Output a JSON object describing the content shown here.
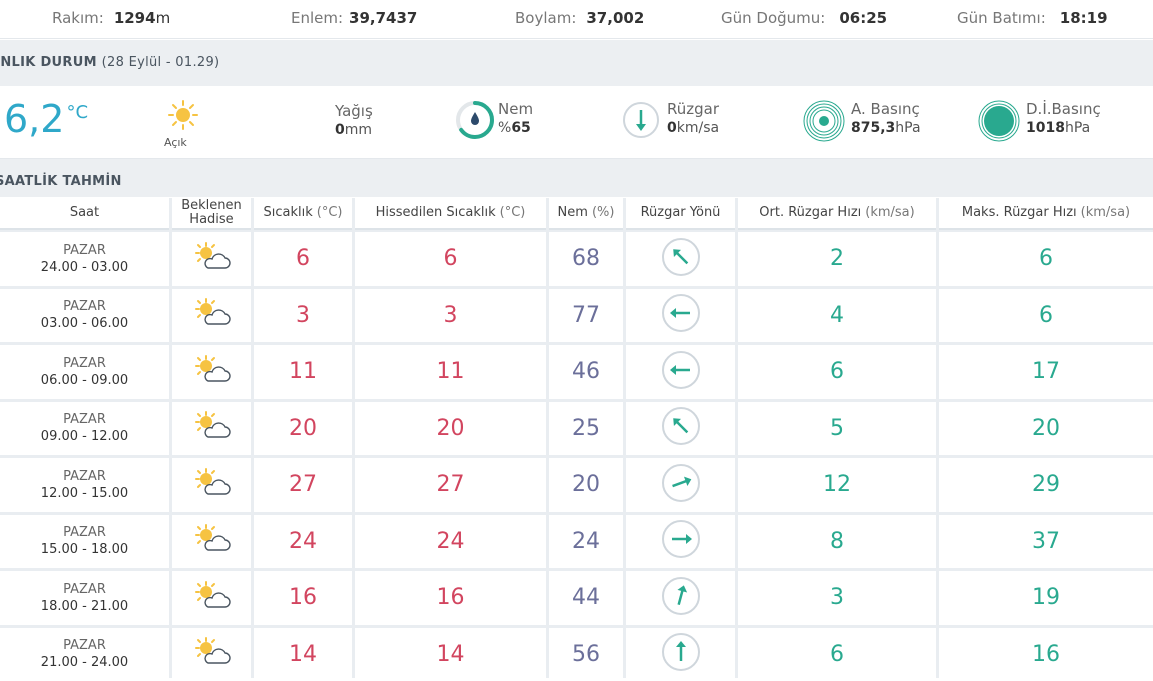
{
  "top": {
    "rakim_label": "Rakım:",
    "rakim_value": "1294",
    "rakim_unit": "m",
    "enlem_label": "Enlem:",
    "enlem_value": "39,7437",
    "boylam_label": "Boylam:",
    "boylam_value": "37,002",
    "gundogumu_label": "Gün Doğumu:",
    "gundogumu_value": "06:25",
    "gunbatimi_label": "Gün Batımı:",
    "gunbatimi_value": "18:19"
  },
  "current_section": {
    "title": "ANLIK DURUM",
    "subtitle": "(28 Eylül - 01.29)"
  },
  "current": {
    "temperature": "6,2",
    "temperature_unit": "°C",
    "condition_icon": "sun-icon",
    "condition_label": "Açık",
    "precip_label": "Yağış",
    "precip_value": "0",
    "precip_unit": "mm",
    "humidity_label": "Nem",
    "humidity_prefix": "%",
    "humidity_value": "65",
    "humidity_ratio": 0.65,
    "wind_label": "Rüzgar",
    "wind_value": "0",
    "wind_unit": "km/sa",
    "pressure_label": "A. Basınç",
    "pressure_value": "875,3",
    "pressure_unit": "hPa",
    "sea_pressure_label": "D.İ.Basınç",
    "sea_pressure_value": "1018",
    "sea_pressure_unit": "hPa",
    "colors": {
      "accent": "#2fa8c9",
      "teal": "#29a98f",
      "red": "#d2455f",
      "purple": "#6b6f9a"
    }
  },
  "hourly_section": {
    "title": "SAATLİK TAHMİN"
  },
  "hourly": {
    "headers": {
      "saat": "Saat",
      "hadise_line1": "Beklenen",
      "hadise_line2": "Hadise",
      "sicaklik": "Sıcaklık",
      "sicaklik_unit": "(°C)",
      "hissedilen": "Hissedilen Sıcaklık",
      "hissedilen_unit": "(°C)",
      "nem": "Nem",
      "nem_unit": "(%)",
      "ruzgar_yonu": "Rüzgar Yönü",
      "ort_ruzgar": "Ort. Rüzgar Hızı",
      "ort_ruzgar_unit": "(km/sa)",
      "maks_ruzgar": "Maks. Rüzgar Hızı",
      "maks_ruzgar_unit": "(km/sa)"
    },
    "rows": [
      {
        "day": "PAZAR",
        "range": "24.00 - 03.00",
        "icon": "partly-cloudy-icon",
        "temp": "6",
        "feels": "6",
        "humidity": "68",
        "wind_dir_deg": 315,
        "wind_avg": "2",
        "wind_max": "6"
      },
      {
        "day": "PAZAR",
        "range": "03.00 - 06.00",
        "icon": "partly-cloudy-icon",
        "temp": "3",
        "feels": "3",
        "humidity": "77",
        "wind_dir_deg": 270,
        "wind_avg": "4",
        "wind_max": "6"
      },
      {
        "day": "PAZAR",
        "range": "06.00 - 09.00",
        "icon": "partly-cloudy-icon",
        "temp": "11",
        "feels": "11",
        "humidity": "46",
        "wind_dir_deg": 270,
        "wind_avg": "6",
        "wind_max": "17"
      },
      {
        "day": "PAZAR",
        "range": "09.00 - 12.00",
        "icon": "partly-cloudy-icon",
        "temp": "20",
        "feels": "20",
        "humidity": "25",
        "wind_dir_deg": 315,
        "wind_avg": "5",
        "wind_max": "20"
      },
      {
        "day": "PAZAR",
        "range": "12.00 - 15.00",
        "icon": "partly-cloudy-icon",
        "temp": "27",
        "feels": "27",
        "humidity": "20",
        "wind_dir_deg": 70,
        "wind_avg": "12",
        "wind_max": "29"
      },
      {
        "day": "PAZAR",
        "range": "15.00 - 18.00",
        "icon": "partly-cloudy-icon",
        "temp": "24",
        "feels": "24",
        "humidity": "24",
        "wind_dir_deg": 90,
        "wind_avg": "8",
        "wind_max": "37"
      },
      {
        "day": "PAZAR",
        "range": "18.00 - 21.00",
        "icon": "partly-cloudy-icon",
        "temp": "16",
        "feels": "16",
        "humidity": "44",
        "wind_dir_deg": 15,
        "wind_avg": "3",
        "wind_max": "19"
      },
      {
        "day": "PAZAR",
        "range": "21.00 - 24.00",
        "icon": "partly-cloudy-icon",
        "temp": "14",
        "feels": "14",
        "humidity": "56",
        "wind_dir_deg": 0,
        "wind_avg": "6",
        "wind_max": "16"
      }
    ]
  }
}
